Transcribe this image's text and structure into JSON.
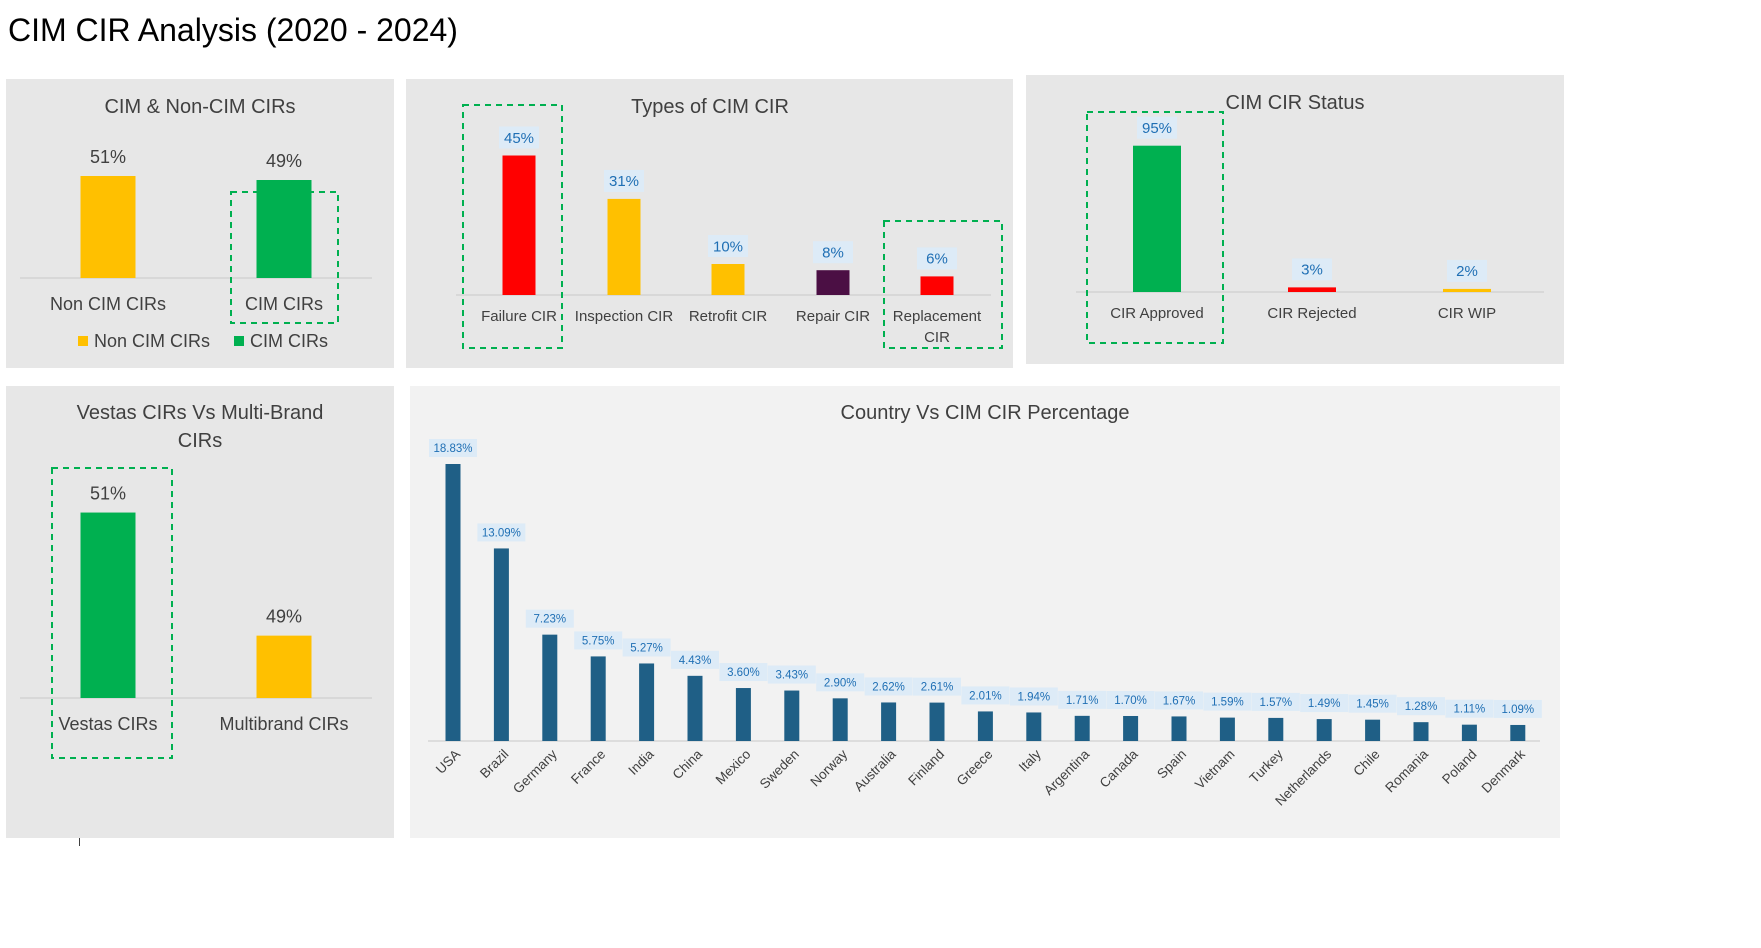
{
  "page": {
    "title": "CIM CIR Analysis (2020 - 2024)"
  },
  "colors": {
    "panel_bg": "#e7e7e7",
    "country_panel_bg": "#f2f2f2",
    "green": "#00b050",
    "yellow": "#ffc000",
    "red": "#ff0000",
    "purple": "#4b0f44",
    "navy": "#1f5f86",
    "highlight_border": "#00b050",
    "label_bg": "#ddebf7",
    "label_text_blue": "#1f6fb4"
  },
  "chart_data": [
    {
      "id": "cim_vs_noncim",
      "type": "bar",
      "title": "CIM & Non-CIM CIRs",
      "categories": [
        "Non CIM CIRs",
        "CIM CIRs"
      ],
      "values": [
        51,
        49
      ],
      "value_labels": [
        "51%",
        "49%"
      ],
      "colors": [
        "#ffc000",
        "#00b050"
      ],
      "legend": [
        {
          "label": "Non CIM CIRs",
          "color": "#ffc000"
        },
        {
          "label": "CIM CIRs",
          "color": "#00b050"
        }
      ],
      "legend_position": "bottom",
      "highlighted": [
        "CIM CIRs"
      ],
      "ylim": [
        0,
        55
      ],
      "grid": false
    },
    {
      "id": "types_of_cim_cir",
      "type": "bar",
      "title": "Types of CIM CIR",
      "categories": [
        "Failure CIR",
        "Inspection CIR",
        "Retrofit CIR",
        "Repair CIR",
        "Replacement CIR"
      ],
      "category_lines": [
        [
          "Failure CIR"
        ],
        [
          "Inspection CIR"
        ],
        [
          "Retrofit CIR"
        ],
        [
          "Repair CIR"
        ],
        [
          "Replacement",
          "CIR"
        ]
      ],
      "values": [
        45,
        31,
        10,
        8,
        6
      ],
      "value_labels": [
        "45%",
        "31%",
        "10%",
        "8%",
        "6%"
      ],
      "colors": [
        "#ff0000",
        "#ffc000",
        "#ffc000",
        "#4b0f44",
        "#ff0000"
      ],
      "highlighted": [
        "Failure CIR",
        "Replacement CIR"
      ],
      "ylim": [
        0,
        50
      ],
      "grid": false
    },
    {
      "id": "cim_cir_status",
      "type": "bar",
      "title": "CIM CIR Status",
      "categories": [
        "CIR Approved",
        "CIR Rejected",
        "CIR WIP"
      ],
      "values": [
        95,
        3,
        2
      ],
      "value_labels": [
        "95%",
        "3%",
        "2%"
      ],
      "colors": [
        "#00b050",
        "#ff0000",
        "#ffc000"
      ],
      "highlighted": [
        "CIR Approved"
      ],
      "ylim": [
        0,
        100
      ],
      "grid": false
    },
    {
      "id": "vestas_vs_multibrand",
      "type": "bar",
      "title": "Vestas CIRs Vs Multi-Brand CIRs",
      "title_lines": [
        "Vestas CIRs Vs Multi-Brand",
        "CIRs"
      ],
      "categories": [
        "Vestas CIRs",
        "Multibrand CIRs"
      ],
      "values": [
        51,
        49
      ],
      "value_labels": [
        "51%",
        "49%"
      ],
      "colors": [
        "#00b050",
        "#ffc000"
      ],
      "highlighted": [
        "Vestas CIRs"
      ],
      "ylim": [
        0,
        55
      ],
      "grid": false
    },
    {
      "id": "country_vs_cim",
      "type": "bar",
      "title": "Country Vs CIM CIR Percentage",
      "categories": [
        "USA",
        "Brazil",
        "Germany",
        "France",
        "India",
        "China",
        "Mexico",
        "Sweden",
        "Norway",
        "Australia",
        "Finland",
        "Greece",
        "Italy",
        "Argentina",
        "Canada",
        "Spain",
        "Vietnam",
        "Turkey",
        "Netherlands",
        "Chile",
        "Romania",
        "Poland",
        "Denmark"
      ],
      "values": [
        18.83,
        13.09,
        7.23,
        5.75,
        5.27,
        4.43,
        3.6,
        3.43,
        2.9,
        2.62,
        2.61,
        2.01,
        1.94,
        1.71,
        1.7,
        1.67,
        1.59,
        1.57,
        1.49,
        1.45,
        1.28,
        1.11,
        1.09
      ],
      "value_labels": [
        "18.83%",
        "13.09%",
        "7.23%",
        "5.75%",
        "5.27%",
        "4.43%",
        "3.60%",
        "3.43%",
        "2.90%",
        "2.62%",
        "2.61%",
        "2.01%",
        "1.94%",
        "1.71%",
        "1.70%",
        "1.67%",
        "1.59%",
        "1.57%",
        "1.49%",
        "1.45%",
        "1.28%",
        "1.11%",
        "1.09%"
      ],
      "color": "#1f5f86",
      "ylim": [
        0,
        20
      ],
      "grid": false
    }
  ]
}
